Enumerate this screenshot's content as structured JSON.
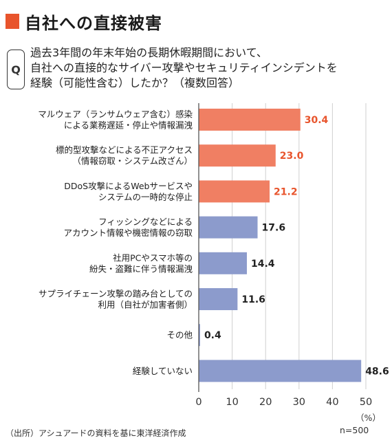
{
  "header": {
    "title": "自社への直接被害"
  },
  "question": {
    "badge": "Q",
    "lines": [
      "過去3年間の年末年始の長期休暇期間において、",
      "自社への直接的なサイバー攻撃やセキュリティインシデントを",
      "経験（可能性含む）したか？（複数回答）"
    ]
  },
  "chart_data": {
    "type": "bar",
    "orientation": "horizontal",
    "categories": [
      [
        "マルウェア（ランサムウェア含む）感染",
        "による業務遅延・停止や情報漏洩"
      ],
      [
        "標的型攻撃などによる不正アクセス",
        "（情報窃取・システム改ざん）"
      ],
      [
        "DDoS攻撃によるWebサービスや",
        "システムの一時的な停止"
      ],
      [
        "フィッシングなどによる",
        "アカウント情報や機密情報の窃取"
      ],
      [
        "社用PCやスマホ等の",
        "紛失・盗難に伴う情報漏洩"
      ],
      [
        "サプライチェーン攻撃の踏み台としての",
        "利用（自社が加害者側）"
      ],
      [
        "その他"
      ],
      [
        "経験していない"
      ]
    ],
    "values": [
      30.4,
      23.0,
      21.2,
      17.6,
      14.4,
      11.6,
      0.4,
      48.6
    ],
    "value_labels": [
      "30.4",
      "23.0",
      "21.2",
      "17.6",
      "14.4",
      "11.6",
      "0.4",
      "48.6"
    ],
    "highlighted": [
      true,
      true,
      true,
      false,
      false,
      false,
      false,
      false
    ],
    "xlim": [
      0,
      50
    ],
    "xticks": [
      "0",
      "10",
      "20",
      "30",
      "40",
      "50"
    ],
    "unit": "（%）",
    "sample": "n=500",
    "grid": true,
    "colors": {
      "highlight": "#f07f63",
      "highlight_text": "#e8542c",
      "normal": "#8c9bcc",
      "normal_text": "#222222",
      "grid": "#cfcfcf",
      "axis": "#555555"
    }
  },
  "footer": {
    "source": "（出所）アシュアードの資料を基に東洋経済作成"
  }
}
